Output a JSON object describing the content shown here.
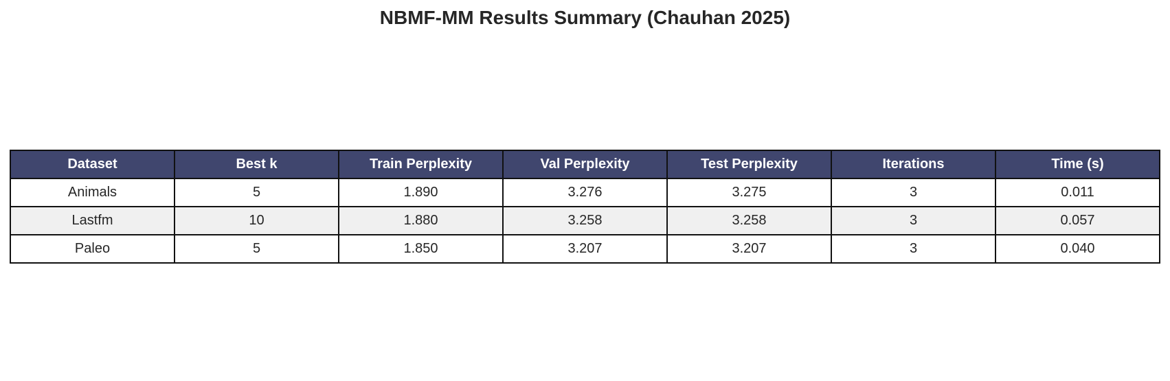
{
  "chart_data": {
    "type": "table",
    "title": "NBMF-MM Results Summary (Chauhan 2025)",
    "columns": [
      "Dataset",
      "Best k",
      "Train Perplexity",
      "Val Perplexity",
      "Test Perplexity",
      "Iterations",
      "Time (s)"
    ],
    "rows": [
      [
        "Animals",
        "5",
        "1.890",
        "3.276",
        "3.275",
        "3",
        "0.011"
      ],
      [
        "Lastfm",
        "10",
        "1.880",
        "3.258",
        "3.258",
        "3",
        "0.057"
      ],
      [
        "Paleo",
        "5",
        "1.850",
        "3.207",
        "3.207",
        "3",
        "0.040"
      ]
    ],
    "colors": {
      "header_bg": "#40466e",
      "header_text": "#ffffff",
      "row_alt_bg": "#f0f0f0",
      "row_bg": "#ffffff",
      "border": "#111111"
    }
  }
}
